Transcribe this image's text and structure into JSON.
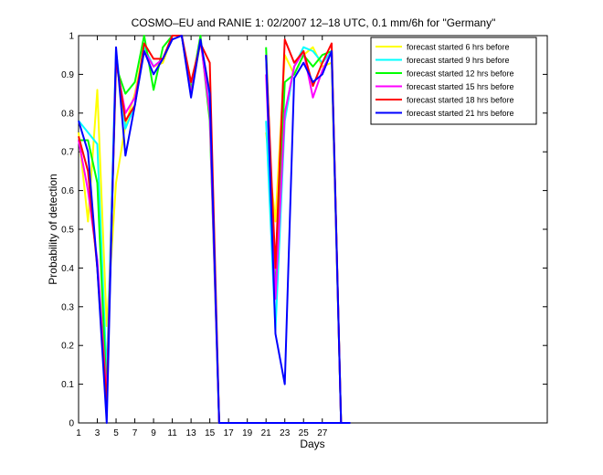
{
  "chart_data": {
    "type": "line",
    "title": "COSMO–EU and RANIE 1: 02/2007 12–18 UTC, 0.1 mm/6h for \"Germany\"",
    "xlabel": "Days",
    "ylabel": "Probability of detection",
    "xlim": [
      1,
      51
    ],
    "ylim": [
      0,
      1
    ],
    "x_ticks": [
      1,
      3,
      5,
      7,
      9,
      11,
      13,
      15,
      17,
      19,
      21,
      23,
      25,
      27
    ],
    "y_ticks": [
      0,
      0.1,
      0.2,
      0.3,
      0.4,
      0.5,
      0.6,
      0.7,
      0.8,
      0.9,
      1
    ],
    "y_tick_labels": [
      "0",
      "0.1",
      "0.2",
      "0.3",
      "0.4",
      "0.5",
      "0.6",
      "0.7",
      "0.8",
      "0.9",
      "1"
    ],
    "grid": false,
    "legend_position": "top-right",
    "series": [
      {
        "name": "forecast started 6 hrs before",
        "color": "#ffff00",
        "segments": [
          {
            "x": [
              1,
              2,
              3,
              4,
              5,
              6,
              7,
              8,
              9,
              10,
              11,
              12,
              13,
              14,
              15,
              16,
              17,
              18,
              19,
              20,
              21,
              22,
              23,
              24,
              25,
              26,
              27,
              28,
              29,
              30
            ],
            "y": [
              0.75,
              0.52,
              0.86,
              0.25,
              0.62,
              0.77,
              0.85,
              0.97,
              0.92,
              0.93,
              1.0,
              1.0,
              0.85,
              0.98,
              0.86,
              0,
              0,
              0,
              0,
              0,
              0,
              0,
              0,
              0,
              0,
              0,
              0,
              0,
              0,
              0
            ]
          },
          {
            "x": [
              21,
              22,
              23,
              24,
              25,
              26,
              27,
              28,
              29,
              30
            ],
            "y": [
              0.75,
              0.52,
              0.95,
              0.9,
              0.95,
              0.97,
              0.92,
              0.93,
              0,
              0
            ]
          }
        ]
      },
      {
        "name": "forecast started 9 hrs before",
        "color": "#00ffff",
        "segments": [
          {
            "x": [
              1,
              2,
              3,
              4,
              5,
              6,
              7,
              8,
              9,
              10,
              11,
              12,
              13,
              14,
              15,
              16,
              17,
              18,
              19,
              20,
              21,
              22,
              23,
              24,
              25,
              26,
              27,
              28,
              29,
              30
            ],
            "y": [
              0.78,
              0.75,
              0.72,
              0.12,
              0.96,
              0.76,
              0.82,
              0.97,
              0.92,
              0.94,
              1.0,
              1.0,
              0.86,
              0.99,
              0.82,
              0,
              0,
              0,
              0,
              0,
              0,
              0,
              0,
              0,
              0,
              0,
              0,
              0,
              0,
              0
            ]
          },
          {
            "x": [
              21,
              22,
              23,
              24,
              25,
              26,
              27,
              28,
              29,
              30
            ],
            "y": [
              0.78,
              0.24,
              0.78,
              0.92,
              0.97,
              0.96,
              0.93,
              0.96,
              0,
              0
            ]
          }
        ]
      },
      {
        "name": "forecast started 12 hrs before",
        "color": "#00ff00",
        "segments": [
          {
            "x": [
              1,
              2,
              3,
              4,
              5,
              6,
              7,
              8,
              9,
              10,
              11,
              12,
              13,
              14,
              15,
              16,
              17,
              18,
              19,
              20,
              21,
              22,
              23,
              24,
              25,
              26,
              27,
              28,
              29,
              30
            ],
            "y": [
              0.73,
              0.73,
              0.62,
              0.07,
              0.92,
              0.85,
              0.88,
              1.0,
              0.86,
              0.97,
              1.0,
              1.0,
              0.86,
              1.0,
              0.78,
              0,
              0,
              0,
              0,
              0,
              0,
              0,
              0,
              0,
              0,
              0,
              0,
              0,
              0,
              0
            ]
          },
          {
            "x": [
              21,
              22,
              23,
              24,
              25,
              26,
              27,
              28,
              29,
              30
            ],
            "y": [
              0.97,
              0.33,
              0.88,
              0.9,
              0.95,
              0.92,
              0.95,
              0.96,
              0,
              0
            ]
          }
        ]
      },
      {
        "name": "forecast started 15 hrs before",
        "color": "#ff00ff",
        "segments": [
          {
            "x": [
              1,
              2,
              3,
              4,
              5,
              6,
              7,
              8,
              9,
              10,
              11,
              12,
              13,
              14,
              15,
              16,
              17,
              18,
              19,
              20,
              21,
              22,
              23,
              24,
              25,
              26,
              27,
              28,
              29,
              30
            ],
            "y": [
              0.73,
              0.6,
              0.42,
              0.07,
              0.93,
              0.8,
              0.84,
              0.96,
              0.92,
              0.94,
              1.0,
              1.0,
              0.85,
              0.99,
              0.8,
              0,
              0,
              0,
              0,
              0,
              0,
              0,
              0,
              0,
              0,
              0,
              0,
              0,
              0,
              0
            ]
          },
          {
            "x": [
              21,
              22,
              23,
              24,
              25,
              26,
              27,
              28,
              29,
              30
            ],
            "y": [
              0.9,
              0.32,
              0.8,
              0.92,
              0.96,
              0.84,
              0.91,
              0.96,
              0,
              0
            ]
          }
        ]
      },
      {
        "name": "forecast started 18 hrs before",
        "color": "#ff0000",
        "segments": [
          {
            "x": [
              1,
              2,
              3,
              4,
              5,
              6,
              7,
              8,
              9,
              10,
              11,
              12,
              13,
              14,
              15,
              16,
              17,
              18,
              19,
              20,
              21,
              22,
              23,
              24,
              25,
              26,
              27,
              28,
              29,
              30
            ],
            "y": [
              0.74,
              0.65,
              0.4,
              0.05,
              0.94,
              0.78,
              0.82,
              0.98,
              0.94,
              0.94,
              1.0,
              1.0,
              0.88,
              0.98,
              0.93,
              0,
              0,
              0,
              0,
              0,
              0,
              0,
              0,
              0,
              0,
              0,
              0,
              0,
              0,
              0
            ]
          },
          {
            "x": [
              21,
              22,
              23,
              24,
              25,
              26,
              27,
              28,
              29,
              30
            ],
            "y": [
              0.95,
              0.4,
              0.99,
              0.93,
              0.96,
              0.87,
              0.93,
              0.98,
              0,
              0
            ]
          }
        ]
      },
      {
        "name": "forecast started 21 hrs before",
        "color": "#0000ff",
        "segments": [
          {
            "x": [
              1,
              2,
              3,
              4,
              5,
              6,
              7,
              8,
              9,
              10,
              11,
              12,
              13,
              14,
              15,
              16,
              17,
              18,
              19,
              20,
              21,
              22,
              23,
              24,
              25,
              26,
              27,
              28,
              29,
              30
            ],
            "y": [
              0.78,
              0.7,
              0.4,
              0.0,
              0.97,
              0.69,
              0.82,
              0.96,
              0.9,
              0.94,
              0.99,
              1.0,
              0.84,
              0.99,
              0.85,
              0,
              0,
              0,
              0,
              0,
              0,
              0,
              0,
              0,
              0,
              0,
              0,
              0,
              0,
              0
            ]
          },
          {
            "x": [
              21,
              22,
              23,
              24,
              25,
              26,
              27,
              28,
              29,
              30
            ],
            "y": [
              0.95,
              0.23,
              0.1,
              0.89,
              0.93,
              0.88,
              0.9,
              0.96,
              0,
              0
            ]
          }
        ]
      }
    ]
  }
}
